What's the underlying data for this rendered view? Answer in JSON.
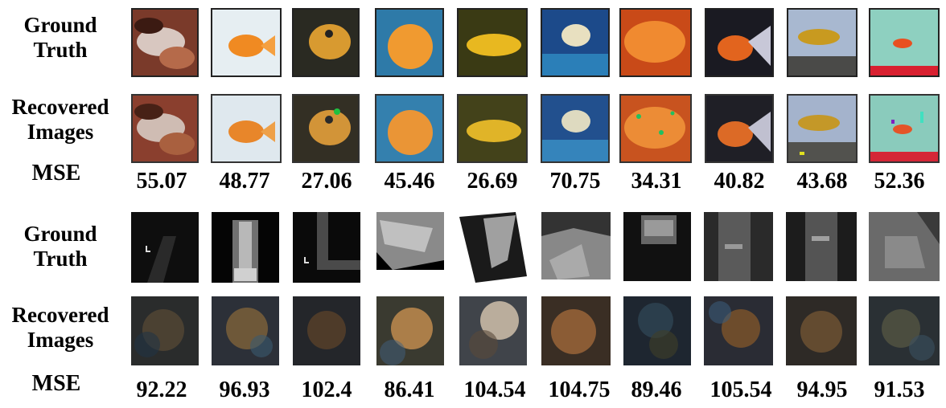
{
  "labels": {
    "ground_truth_line1": "Ground",
    "ground_truth_line2": "Truth",
    "recovered_line1": "Recovered",
    "recovered_line2": "Images",
    "mse": "MSE"
  },
  "panel_fish": {
    "mse_values": [
      "55.07",
      "48.77",
      "27.06",
      "45.46",
      "26.69",
      "70.75",
      "34.31",
      "40.82",
      "43.68",
      "52.36"
    ]
  },
  "panel_xray": {
    "mse_values": [
      "92.22",
      "96.93",
      "102.4",
      "86.41",
      "104.54",
      "104.75",
      "89.46",
      "105.54",
      "94.95",
      "91.53"
    ]
  }
}
